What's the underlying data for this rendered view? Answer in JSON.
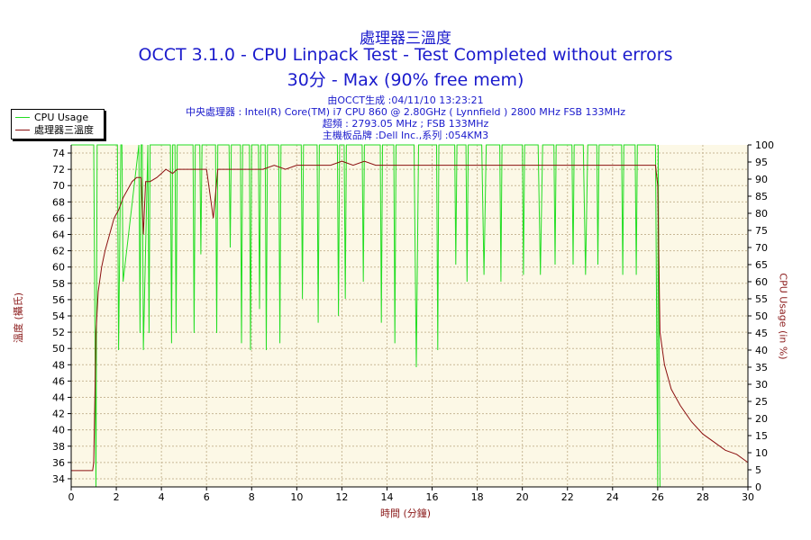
{
  "header": {
    "title1": "處理器三溫度",
    "title2": "OCCT 3.1.0 - CPU Linpack Test - Test Completed without errors",
    "title3": "30分 - Max (90% free mem)",
    "info": [
      "由OCCT生成 :04/11/10 13:23:21",
      "中央處理器 : Intel(R) Core(TM) i7 CPU 860 @ 2.80GHz ( Lynnfield ) 2800 MHz FSB 133MHz",
      "超頻 : 2793.05 MHz ; FSB 133MHz",
      "主機板品牌 :Dell Inc.,系列 :054KM3"
    ]
  },
  "colors": {
    "cpu_usage": "#22dd22",
    "temperature": "#8b1010",
    "plot_bg": "#fcf8e6",
    "grid": "#c8b896"
  },
  "chart_data": {
    "type": "line",
    "xlabel": "時間 (分鐘)",
    "ylabel_left": "溫度 (攝氏)",
    "ylabel_right": "CPU Usage (in %)",
    "x_range": [
      0,
      30
    ],
    "y_left_range": [
      33,
      75
    ],
    "y_right_range": [
      0,
      100
    ],
    "x_ticks": [
      0,
      2,
      4,
      6,
      8,
      10,
      12,
      14,
      16,
      18,
      20,
      22,
      24,
      26,
      28,
      30
    ],
    "y_left_ticks": [
      34,
      36,
      38,
      40,
      42,
      44,
      46,
      48,
      50,
      52,
      54,
      56,
      58,
      60,
      62,
      64,
      66,
      68,
      70,
      72,
      74
    ],
    "y_right_ticks": [
      0,
      5,
      10,
      15,
      20,
      25,
      30,
      35,
      40,
      45,
      50,
      55,
      60,
      65,
      70,
      75,
      80,
      85,
      90,
      95,
      100
    ],
    "grid": true,
    "legend_position": "top-left",
    "series": [
      {
        "name": "CPU Usage",
        "axis": "right",
        "x": [
          0,
          1.0,
          1.1,
          1.15,
          1.3,
          1.4,
          2.05,
          2.1,
          2.2,
          2.25,
          2.3,
          3.0,
          3.05,
          3.1,
          3.15,
          3.2,
          3.4,
          3.45,
          3.5,
          4.4,
          4.45,
          4.5,
          4.6,
          4.65,
          4.7,
          5.4,
          5.45,
          5.5,
          5.7,
          5.75,
          5.8,
          6.4,
          6.45,
          6.5,
          7.0,
          7.05,
          7.1,
          7.5,
          7.55,
          7.6,
          7.9,
          7.95,
          8.0,
          8.3,
          8.35,
          8.4,
          8.6,
          8.65,
          8.7,
          9.2,
          9.25,
          9.3,
          10.2,
          10.25,
          10.3,
          10.9,
          10.95,
          11.0,
          11.8,
          11.85,
          11.9,
          12.1,
          12.15,
          12.2,
          12.9,
          12.95,
          13.0,
          13.7,
          13.75,
          13.8,
          14.3,
          14.35,
          14.4,
          15.2,
          15.3,
          15.4,
          16.2,
          16.25,
          16.3,
          17.0,
          17.05,
          17.1,
          17.5,
          17.55,
          17.6,
          18.2,
          18.3,
          18.4,
          19.0,
          19.05,
          19.1,
          20.0,
          20.05,
          20.1,
          20.7,
          20.8,
          20.9,
          21.4,
          21.45,
          21.5,
          22.2,
          22.25,
          22.3,
          22.7,
          22.8,
          22.9,
          23.3,
          23.35,
          23.4,
          24.4,
          24.45,
          24.5,
          25.0,
          25.05,
          25.1,
          25.9,
          26.0,
          26.02,
          26.1,
          30
        ],
        "values": [
          100,
          100,
          0,
          100,
          100,
          100,
          100,
          40,
          100,
          100,
          60,
          100,
          45,
          100,
          100,
          40,
          100,
          45,
          100,
          100,
          42,
          100,
          100,
          45,
          100,
          100,
          45,
          100,
          100,
          68,
          100,
          100,
          45,
          100,
          100,
          70,
          100,
          100,
          42,
          100,
          100,
          40,
          100,
          100,
          52,
          100,
          100,
          40,
          100,
          100,
          42,
          100,
          100,
          55,
          100,
          100,
          48,
          100,
          100,
          50,
          100,
          100,
          55,
          100,
          100,
          60,
          100,
          100,
          48,
          100,
          100,
          42,
          100,
          100,
          35,
          100,
          100,
          40,
          100,
          100,
          65,
          100,
          100,
          60,
          100,
          100,
          62,
          100,
          100,
          60,
          100,
          100,
          62,
          100,
          100,
          62,
          100,
          100,
          65,
          100,
          100,
          65,
          100,
          100,
          62,
          100,
          100,
          65,
          100,
          100,
          62,
          100,
          100,
          62,
          100,
          100,
          0,
          100,
          0,
          0
        ]
      },
      {
        "name": "處理器三溫度",
        "axis": "left",
        "x": [
          0,
          0.3,
          0.6,
          0.95,
          1.0,
          1.05,
          1.1,
          1.2,
          1.35,
          1.5,
          1.7,
          1.9,
          2.1,
          2.3,
          2.5,
          2.7,
          2.9,
          3.1,
          3.2,
          3.3,
          3.5,
          3.8,
          4.0,
          4.2,
          4.5,
          4.7,
          5.0,
          5.5,
          6.0,
          6.3,
          6.5,
          7.0,
          7.5,
          8.0,
          8.5,
          9.0,
          9.5,
          10.0,
          10.5,
          11.0,
          11.5,
          12.0,
          12.5,
          13.0,
          13.5,
          14.0,
          14.5,
          15.0,
          15.5,
          16.0,
          16.5,
          17.0,
          17.5,
          18.0,
          18.5,
          19.0,
          19.5,
          20.0,
          20.5,
          21.0,
          21.5,
          22.0,
          22.5,
          23.0,
          23.5,
          24.0,
          24.5,
          25.0,
          25.5,
          25.9,
          26.0,
          26.1,
          26.3,
          26.6,
          27.0,
          27.5,
          28.0,
          28.5,
          29.0,
          29.5,
          30.0
        ],
        "values": [
          35,
          35,
          35,
          35,
          36,
          44,
          52,
          57,
          60,
          62,
          64,
          66,
          67,
          68.5,
          69.5,
          70.5,
          71,
          71,
          64,
          70.5,
          70.5,
          71,
          71.5,
          72,
          71.5,
          72,
          72,
          72,
          72,
          66,
          72,
          72,
          72,
          72,
          72,
          72.5,
          72,
          72.5,
          72.5,
          72.5,
          72.5,
          73,
          72.5,
          73,
          72.5,
          72.5,
          72.5,
          72.5,
          72.5,
          72.5,
          72.5,
          72.5,
          72.5,
          72.5,
          72.5,
          72.5,
          72.5,
          72.5,
          72.5,
          72.5,
          72.5,
          72.5,
          72.5,
          72.5,
          72.5,
          72.5,
          72.5,
          72.5,
          72.5,
          72.5,
          70,
          52,
          48,
          45,
          43,
          41,
          39.5,
          38.5,
          37.5,
          37,
          36
        ]
      }
    ]
  }
}
